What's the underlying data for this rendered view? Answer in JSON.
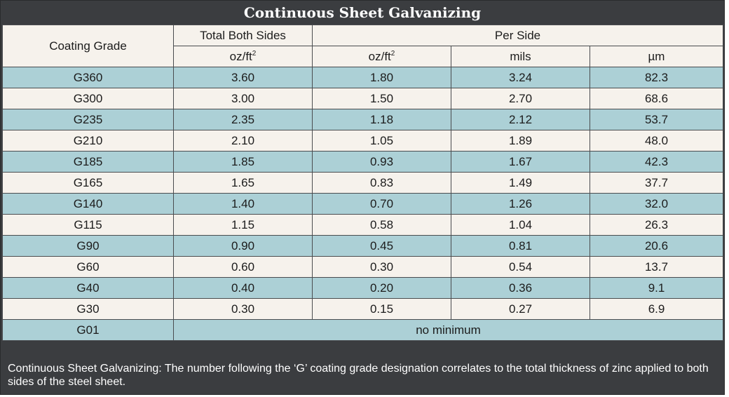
{
  "title": "Continuous Sheet Galvanizing",
  "header": {
    "coating_grade": "Coating Grade",
    "total_both_sides": "Total Both Sides",
    "per_side": "Per Side",
    "unit_oz_base": "oz/ft",
    "unit_oz_exp": "2",
    "unit_mils": "mils",
    "unit_um": "µm"
  },
  "rows": [
    {
      "grade": "G360",
      "total_oz": "3.60",
      "side_oz": "1.80",
      "mils": "3.24",
      "um": "82.3"
    },
    {
      "grade": "G300",
      "total_oz": "3.00",
      "side_oz": "1.50",
      "mils": "2.70",
      "um": "68.6"
    },
    {
      "grade": "G235",
      "total_oz": "2.35",
      "side_oz": "1.18",
      "mils": "2.12",
      "um": "53.7"
    },
    {
      "grade": "G210",
      "total_oz": "2.10",
      "side_oz": "1.05",
      "mils": "1.89",
      "um": "48.0"
    },
    {
      "grade": "G185",
      "total_oz": "1.85",
      "side_oz": "0.93",
      "mils": "1.67",
      "um": "42.3"
    },
    {
      "grade": "G165",
      "total_oz": "1.65",
      "side_oz": "0.83",
      "mils": "1.49",
      "um": "37.7"
    },
    {
      "grade": "G140",
      "total_oz": "1.40",
      "side_oz": "0.70",
      "mils": "1.26",
      "um": "32.0"
    },
    {
      "grade": "G115",
      "total_oz": "1.15",
      "side_oz": "0.58",
      "mils": "1.04",
      "um": "26.3"
    },
    {
      "grade": "G90",
      "total_oz": "0.90",
      "side_oz": "0.45",
      "mils": "0.81",
      "um": "20.6"
    },
    {
      "grade": "G60",
      "total_oz": "0.60",
      "side_oz": "0.30",
      "mils": "0.54",
      "um": "13.7"
    },
    {
      "grade": "G40",
      "total_oz": "0.40",
      "side_oz": "0.20",
      "mils": "0.36",
      "um": "9.1"
    },
    {
      "grade": "G30",
      "total_oz": "0.30",
      "side_oz": "0.15",
      "mils": "0.27",
      "um": "6.9"
    }
  ],
  "last_row": {
    "grade": "G01",
    "note": "no minimum"
  },
  "caption": "Continuous Sheet Galvanizing: The number following the ‘G’ coating grade designation correlates to the total thickness of zinc applied to both sides of the steel sheet.",
  "colors": {
    "background": "#3b3d40",
    "row_light": "#f6f2ec",
    "row_dark": "#acd0d6"
  }
}
